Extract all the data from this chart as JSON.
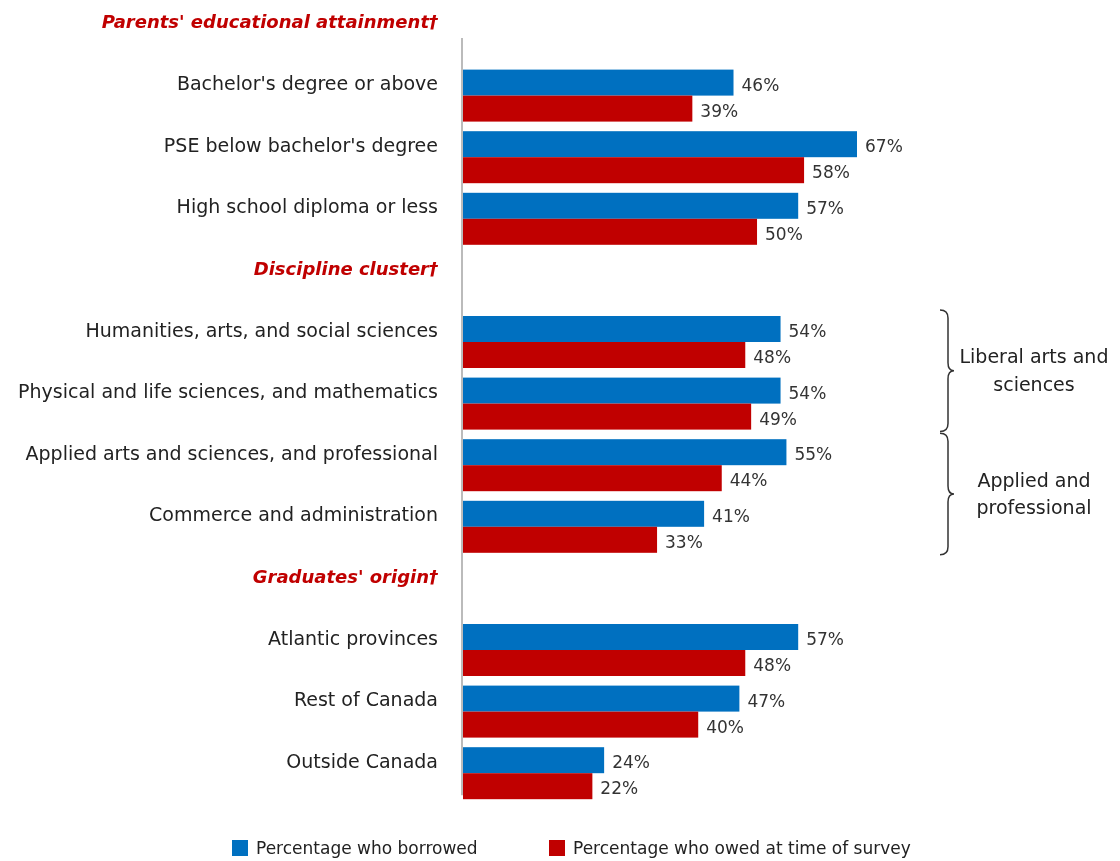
{
  "chart_data": {
    "type": "bar",
    "orientation": "horizontal",
    "categories": [
      "Parents' educational attainment†",
      "Bachelor's degree or above",
      "PSE below bachelor's degree",
      "High school diploma or less",
      "Discipline cluster†",
      "Humanities, arts, and social sciences",
      "Physical and life sciences, and mathematics",
      "Applied arts and sciences, and professional",
      "Commerce and administration",
      "Graduates' origin†",
      "Atlantic provinces",
      "Rest of Canada",
      "Outside Canada"
    ],
    "series": [
      {
        "name": "Percentage who borrowed",
        "color": "#0070c0",
        "values": [
          null,
          46,
          67,
          57,
          null,
          54,
          54,
          55,
          41,
          null,
          57,
          47,
          24
        ],
        "value_labels": [
          null,
          "46%",
          "67%",
          "57%",
          null,
          "54%",
          "54%",
          "55%",
          "41%",
          null,
          "57%",
          "47%",
          "24%"
        ]
      },
      {
        "name": "Percentage who owed at time of survey",
        "color": "#c00000",
        "values": [
          null,
          39,
          58,
          50,
          null,
          48,
          49,
          44,
          33,
          null,
          48,
          40,
          22
        ],
        "value_labels": [
          null,
          "39%",
          "58%",
          "50%",
          null,
          "48%",
          "49%",
          "44%",
          "33%",
          null,
          "48%",
          "40%",
          "22%"
        ]
      }
    ],
    "annotations": [
      "Liberal arts and sciences",
      "Applied and professional"
    ],
    "legend": "bottom"
  }
}
